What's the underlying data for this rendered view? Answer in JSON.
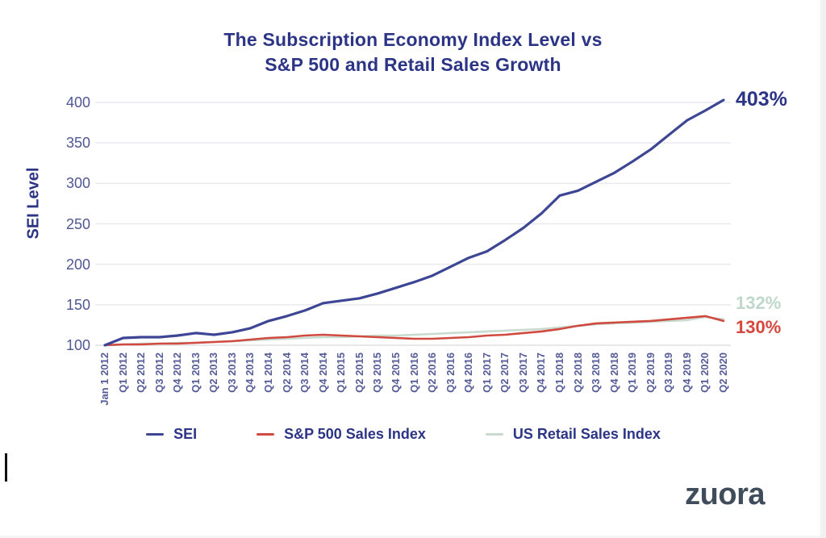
{
  "title": {
    "line1": "The Subscription Economy Index Level vs",
    "line2": "S&P 500 and Retail Sales Growth"
  },
  "chart_data": {
    "type": "line",
    "title": "The Subscription Economy Index Level vs S&P 500 and Retail Sales Growth",
    "ylabel": "SEI Level",
    "xlabel": "",
    "ylim": [
      100,
      400
    ],
    "yticks": [
      100,
      150,
      200,
      250,
      300,
      350,
      400
    ],
    "grid": true,
    "legend_position": "bottom",
    "categories": [
      "Jan 1 2012",
      "Q1 2012",
      "Q2 2012",
      "Q3 2012",
      "Q4 2012",
      "Q1 2013",
      "Q2 2013",
      "Q3 2013",
      "Q4 2013",
      "Q1 2014",
      "Q2 2014",
      "Q3 2014",
      "Q4 2014",
      "Q1 2015",
      "Q2 2015",
      "Q3 2015",
      "Q4 2015",
      "Q1 2016",
      "Q2 2016",
      "Q3 2016",
      "Q4 2016",
      "Q1 2017",
      "Q2 2017",
      "Q3 2017",
      "Q4 2017",
      "Q1 2018",
      "Q2 2018",
      "Q3 2018",
      "Q4 2018",
      "Q1 2019",
      "Q2 2019",
      "Q3 2019",
      "Q4 2019",
      "Q1 2020",
      "Q2 2020"
    ],
    "series": [
      {
        "name": "SEI",
        "color": "#3d4694",
        "end_label": "403%",
        "end_label_color": "#2c3485",
        "values": [
          100,
          109,
          110,
          110,
          112,
          115,
          113,
          116,
          121,
          130,
          136,
          143,
          152,
          155,
          158,
          164,
          171,
          178,
          186,
          197,
          208,
          216,
          230,
          245,
          263,
          285,
          291,
          302,
          313,
          327,
          342,
          360,
          378,
          390,
          403
        ]
      },
      {
        "name": "S&P 500 Sales Index",
        "color": "#d04a40",
        "end_label": "130%",
        "end_label_color": "#d6473d",
        "values": [
          100,
          101,
          101,
          102,
          102,
          103,
          104,
          105,
          107,
          109,
          110,
          112,
          113,
          112,
          111,
          110,
          109,
          108,
          108,
          109,
          110,
          112,
          113,
          115,
          117,
          120,
          124,
          127,
          128,
          129,
          130,
          132,
          134,
          136,
          130
        ]
      },
      {
        "name": "US Retail Sales Index",
        "color": "#c9dbd0",
        "end_label": "132%",
        "end_label_color": "#bfd8cb",
        "values": [
          100,
          101,
          102,
          102,
          103,
          103,
          104,
          105,
          106,
          107,
          108,
          109,
          110,
          110,
          111,
          112,
          112,
          113,
          114,
          115,
          116,
          117,
          118,
          119,
          120,
          122,
          124,
          126,
          127,
          128,
          129,
          130,
          131,
          135,
          132
        ]
      }
    ]
  },
  "colors": {
    "title_text": "#2c3485",
    "axis_tick_text": "#4f5694",
    "x_tick_text": "#565c97",
    "gridline": "#e9e9ee",
    "baseline": "#e0e0e4"
  },
  "branding": {
    "logo_text": "zuora",
    "logo_color": "#3f4c5c"
  }
}
